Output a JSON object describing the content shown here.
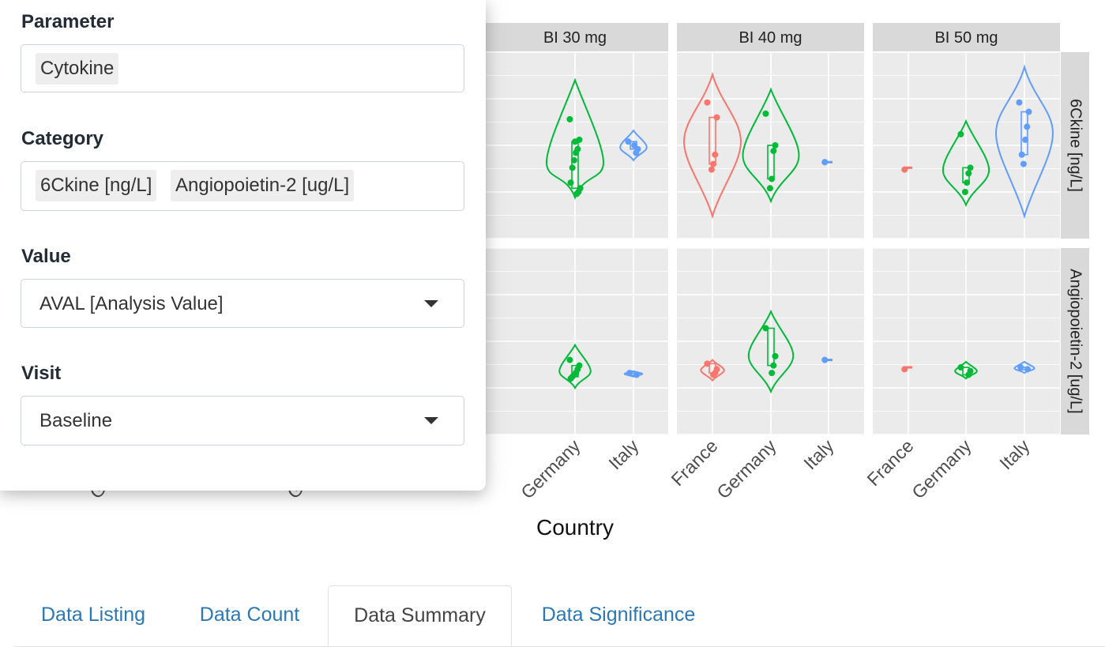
{
  "filters": {
    "parameter": {
      "label": "Parameter",
      "chips": [
        "Cytokine"
      ]
    },
    "category": {
      "label": "Category",
      "chips": [
        "6Ckine [ng/L]",
        "Angiopoietin-2 [ug/L]"
      ]
    },
    "value": {
      "label": "Value",
      "selected": "AVAL [Analysis Value]"
    },
    "visit": {
      "label": "Visit",
      "selected": "Baseline"
    }
  },
  "tabs": [
    {
      "label": "Data Listing",
      "active": false
    },
    {
      "label": "Data Count",
      "active": false
    },
    {
      "label": "Data Summary",
      "active": true
    },
    {
      "label": "Data Significance",
      "active": false
    }
  ],
  "chart_data": {
    "type": "violin",
    "xlabel": "Country",
    "categories": [
      "France",
      "Germany",
      "Italy"
    ],
    "facet_columns": [
      "BI 30 mg",
      "BI 40 mg",
      "BI 50 mg"
    ],
    "facet_rows": [
      "6Ckine [ng/L]",
      "Angiopoietin-2 [ug/L]"
    ],
    "colors": {
      "France": "#f8766d",
      "Germany": "#00ba38",
      "Italy": "#619cff",
      "panel_bg": "#ebebeb",
      "strip_bg": "#d9d9d9"
    },
    "grid": true,
    "series": [
      {
        "facet": "BI 30 mg",
        "row": "6Ckine [ng/L]",
        "country": "Germany",
        "min": 0.22,
        "max": 0.85,
        "points": [
          0.64,
          0.53,
          0.48,
          0.46,
          0.42,
          0.38,
          0.3,
          0.27,
          0.25,
          0.24,
          0.52
        ]
      },
      {
        "facet": "BI 30 mg",
        "row": "6Ckine [ng/L]",
        "country": "Italy",
        "min": 0.42,
        "max": 0.58,
        "points": [
          0.52,
          0.48,
          0.46,
          0.5
        ]
      },
      {
        "facet": "BI 40 mg",
        "row": "6Ckine [ng/L]",
        "country": "France",
        "min": 0.12,
        "max": 0.88,
        "points": [
          0.73,
          0.65,
          0.45,
          0.4,
          0.37
        ]
      },
      {
        "facet": "BI 40 mg",
        "row": "6Ckine [ng/L]",
        "country": "Germany",
        "min": 0.2,
        "max": 0.8,
        "points": [
          0.67,
          0.5,
          0.47,
          0.32,
          0.27
        ]
      },
      {
        "facet": "BI 40 mg",
        "row": "6Ckine [ng/L]",
        "country": "Italy",
        "min": 0.4,
        "max": 0.41,
        "points": [
          0.41
        ]
      },
      {
        "facet": "BI 50 mg",
        "row": "6Ckine [ng/L]",
        "country": "France",
        "min": 0.37,
        "max": 0.38,
        "points": [
          0.37
        ]
      },
      {
        "facet": "BI 50 mg",
        "row": "6Ckine [ng/L]",
        "country": "Germany",
        "min": 0.18,
        "max": 0.63,
        "points": [
          0.56,
          0.38,
          0.35,
          0.3,
          0.25
        ]
      },
      {
        "facet": "BI 50 mg",
        "row": "6Ckine [ng/L]",
        "country": "Italy",
        "min": 0.12,
        "max": 0.92,
        "points": [
          0.73,
          0.68,
          0.6,
          0.53,
          0.4,
          0.45
        ]
      },
      {
        "facet": "BI 30 mg",
        "row": "Angiopoietin-2 [ug/L]",
        "country": "Germany",
        "min": 0.25,
        "max": 0.48,
        "points": [
          0.4,
          0.37,
          0.35,
          0.33,
          0.32,
          0.31,
          0.3
        ]
      },
      {
        "facet": "BI 30 mg",
        "row": "Angiopoietin-2 [ug/L]",
        "country": "Italy",
        "min": 0.31,
        "max": 0.34,
        "points": [
          0.33,
          0.32
        ]
      },
      {
        "facet": "BI 40 mg",
        "row": "Angiopoietin-2 [ug/L]",
        "country": "France",
        "min": 0.29,
        "max": 0.4,
        "points": [
          0.38,
          0.35,
          0.33,
          0.32
        ]
      },
      {
        "facet": "BI 40 mg",
        "row": "Angiopoietin-2 [ug/L]",
        "country": "Germany",
        "min": 0.23,
        "max": 0.66,
        "points": [
          0.57,
          0.42,
          0.37,
          0.33
        ]
      },
      {
        "facet": "BI 40 mg",
        "row": "Angiopoietin-2 [ug/L]",
        "country": "Italy",
        "min": 0.4,
        "max": 0.4,
        "points": [
          0.4
        ]
      },
      {
        "facet": "BI 50 mg",
        "row": "Angiopoietin-2 [ug/L]",
        "country": "France",
        "min": 0.35,
        "max": 0.36,
        "points": [
          0.35
        ]
      },
      {
        "facet": "BI 50 mg",
        "row": "Angiopoietin-2 [ug/L]",
        "country": "Germany",
        "min": 0.3,
        "max": 0.39,
        "points": [
          0.36,
          0.34,
          0.32
        ]
      },
      {
        "facet": "BI 50 mg",
        "row": "Angiopoietin-2 [ug/L]",
        "country": "Italy",
        "min": 0.33,
        "max": 0.39,
        "points": [
          0.36,
          0.35
        ]
      }
    ]
  }
}
